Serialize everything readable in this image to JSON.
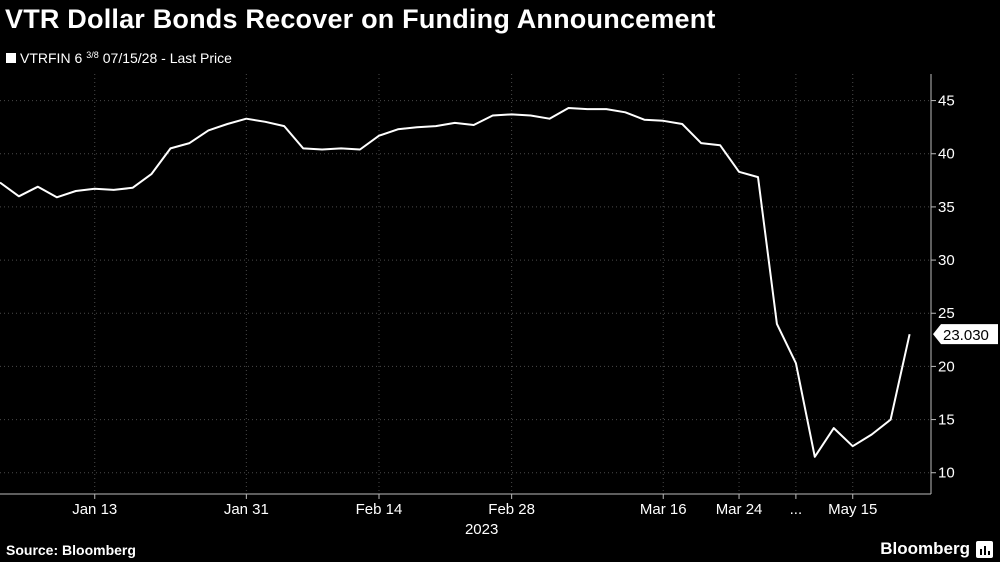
{
  "title": "VTR Dollar Bonds Recover on Funding Announcement",
  "legend": {
    "prefix": "VTRFIN 6",
    "fraction": "3/8",
    "suffix": "07/15/28 - Last Price"
  },
  "source": "Source: Bloomberg",
  "brand": "Bloomberg",
  "chart_data": {
    "type": "line",
    "series": [
      {
        "name": "VTRFIN 6 3/8 07/15/28 - Last Price",
        "color": "#ffffff",
        "values": [
          37.3,
          36.0,
          36.9,
          35.9,
          36.5,
          36.7,
          36.6,
          36.8,
          38.1,
          40.5,
          41.0,
          42.2,
          42.8,
          43.3,
          43.0,
          42.6,
          40.5,
          40.4,
          40.5,
          40.4,
          41.7,
          42.3,
          42.5,
          42.6,
          42.9,
          42.7,
          43.6,
          43.7,
          43.6,
          43.3,
          44.3,
          44.2,
          44.2,
          43.9,
          43.2,
          43.1,
          42.8,
          41.0,
          40.8,
          38.3,
          37.8,
          24.0,
          20.3,
          11.5,
          14.2,
          12.5,
          13.6,
          15.0,
          23.03
        ]
      }
    ],
    "x_ticks": [
      "Jan 13",
      "Jan 31",
      "Feb 14",
      "Feb 28",
      "Mar 16",
      "Mar 24",
      "...",
      "May 15"
    ],
    "x_tick_indices": [
      5,
      13,
      20,
      27,
      35,
      39,
      42,
      45
    ],
    "x_sublabel": "2023",
    "y_ticks": [
      10,
      15,
      20,
      25,
      30,
      35,
      40,
      45
    ],
    "ylim": [
      8,
      47.5
    ],
    "last_value_label": "23.030",
    "grid": true,
    "grid_style": "dotted"
  }
}
